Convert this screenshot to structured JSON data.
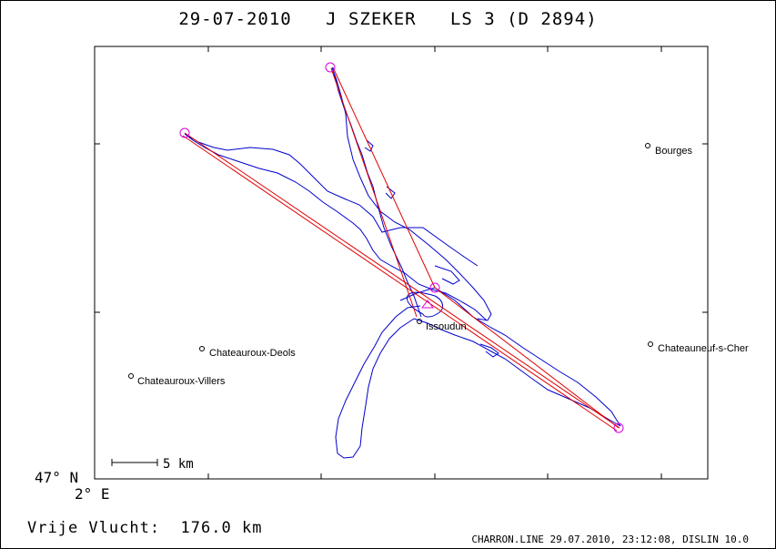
{
  "title": {
    "date": "29-07-2010",
    "pilot": "J SZEKER",
    "glider": "LS 3 (D 2894)"
  },
  "axes": {
    "lat_label": "47° N",
    "lon_label": "2° E"
  },
  "scale_bar": {
    "label": "5 km"
  },
  "places": [
    {
      "name": "Bourges"
    },
    {
      "name": "Chateauroux-Deols"
    },
    {
      "name": "Chateauroux-Villers"
    },
    {
      "name": "Chateauneuf-s-Cher"
    },
    {
      "name": "Issoudun"
    }
  ],
  "distance": {
    "label": "Vrije Vlucht:",
    "value": "176.0 km"
  },
  "footer": "CHARRON.LINE 29.07.2010, 23:12:08, DISLIN 10.0",
  "colors": {
    "track": "#0000cc",
    "task": "#e00000",
    "turnpoint": "#dd00dd"
  }
}
